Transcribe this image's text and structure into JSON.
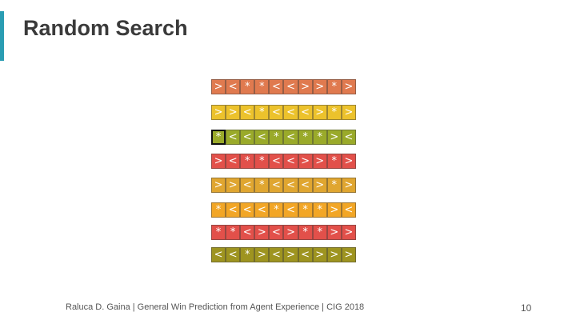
{
  "slide": {
    "title": "Random Search",
    "footer": "Raluca D. Gaina | General Win Prediction from Agent Experience | CIG 2018",
    "page_number": "10",
    "accent_color": "#2a9db3"
  },
  "sequences": [
    {
      "color": "#e07a4f",
      "actions": [
        ">",
        "<",
        "*",
        "*",
        "<",
        "<",
        ">",
        ">",
        "*",
        ">"
      ]
    },
    {
      "color": "#ecc22c",
      "actions": [
        ">",
        ">",
        "<",
        "*",
        "<",
        "<",
        "<",
        ">",
        "*",
        ">"
      ]
    },
    {
      "color": "#9aaa2a",
      "selected_index": 0,
      "actions": [
        "*",
        "<",
        "<",
        "<",
        "*",
        "<",
        "*",
        "*",
        ">",
        "<"
      ]
    },
    {
      "color": "#e2504a",
      "actions": [
        ">",
        "<",
        "*",
        "*",
        "<",
        "<",
        ">",
        ">",
        "*",
        ">"
      ]
    },
    {
      "color": "#e0a630",
      "actions": [
        ">",
        ">",
        "<",
        "*",
        "<",
        "<",
        "<",
        ">",
        "*",
        ">"
      ]
    },
    {
      "color": "#f2a626",
      "actions": [
        "*",
        "<",
        "<",
        "<",
        "*",
        "<",
        "*",
        "*",
        ">",
        "<"
      ]
    },
    {
      "color": "#e2504a",
      "actions": [
        "*",
        "*",
        "<",
        ">",
        "<",
        ">",
        "*",
        "*",
        ">",
        ">"
      ]
    },
    {
      "color": "#9e9420",
      "actions": [
        "<",
        "<",
        "*",
        ">",
        "<",
        ">",
        "<",
        ">",
        ">",
        ">"
      ]
    }
  ]
}
